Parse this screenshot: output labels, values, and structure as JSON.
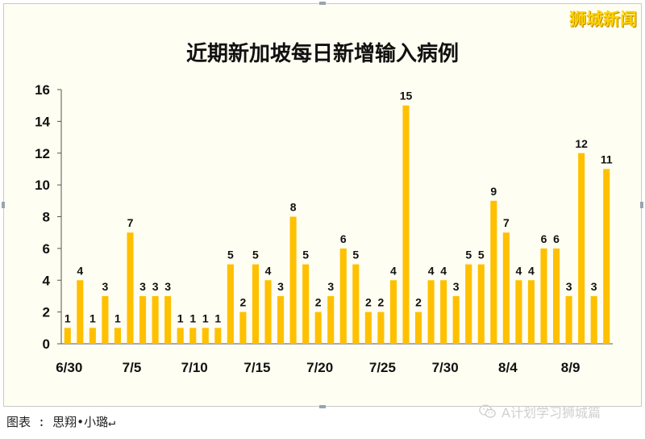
{
  "brand_watermark": "狮城新闻",
  "caption": "图表 : 思翔•小璐↵",
  "wechat_source": "A计划学习狮城篇",
  "chart_data": {
    "type": "bar",
    "title": "近期新加坡每日新增输入病例",
    "xlabel": "",
    "ylabel": "",
    "categories": [
      "6/30",
      "7/1",
      "7/2",
      "7/3",
      "7/4",
      "7/5",
      "7/6",
      "7/7",
      "7/8",
      "7/9",
      "7/10",
      "7/11",
      "7/12",
      "7/13",
      "7/14",
      "7/15",
      "7/16",
      "7/17",
      "7/18",
      "7/19",
      "7/20",
      "7/21",
      "7/22",
      "7/23",
      "7/24",
      "7/25",
      "7/26",
      "7/27",
      "7/28",
      "7/29",
      "7/30",
      "7/31",
      "8/1",
      "8/2",
      "8/3",
      "8/4",
      "8/5",
      "8/6",
      "8/7",
      "8/8",
      "8/9",
      "8/10",
      "8/11",
      "8/12"
    ],
    "values": [
      1,
      4,
      1,
      3,
      1,
      7,
      3,
      3,
      3,
      1,
      1,
      1,
      1,
      5,
      2,
      5,
      4,
      3,
      8,
      5,
      2,
      3,
      6,
      5,
      2,
      2,
      4,
      15,
      2,
      4,
      4,
      3,
      5,
      5,
      9,
      7,
      4,
      4,
      6,
      6,
      3,
      12,
      3,
      11
    ],
    "x_tick_labels": [
      "6/30",
      "7/5",
      "7/10",
      "7/15",
      "7/20",
      "7/25",
      "7/30",
      "8/4",
      "8/9"
    ],
    "ylim": [
      0,
      16
    ],
    "y_ticks": [
      0,
      2,
      4,
      6,
      8,
      10,
      12,
      14,
      16
    ],
    "grid": false,
    "bar_color": "#ffc000"
  }
}
